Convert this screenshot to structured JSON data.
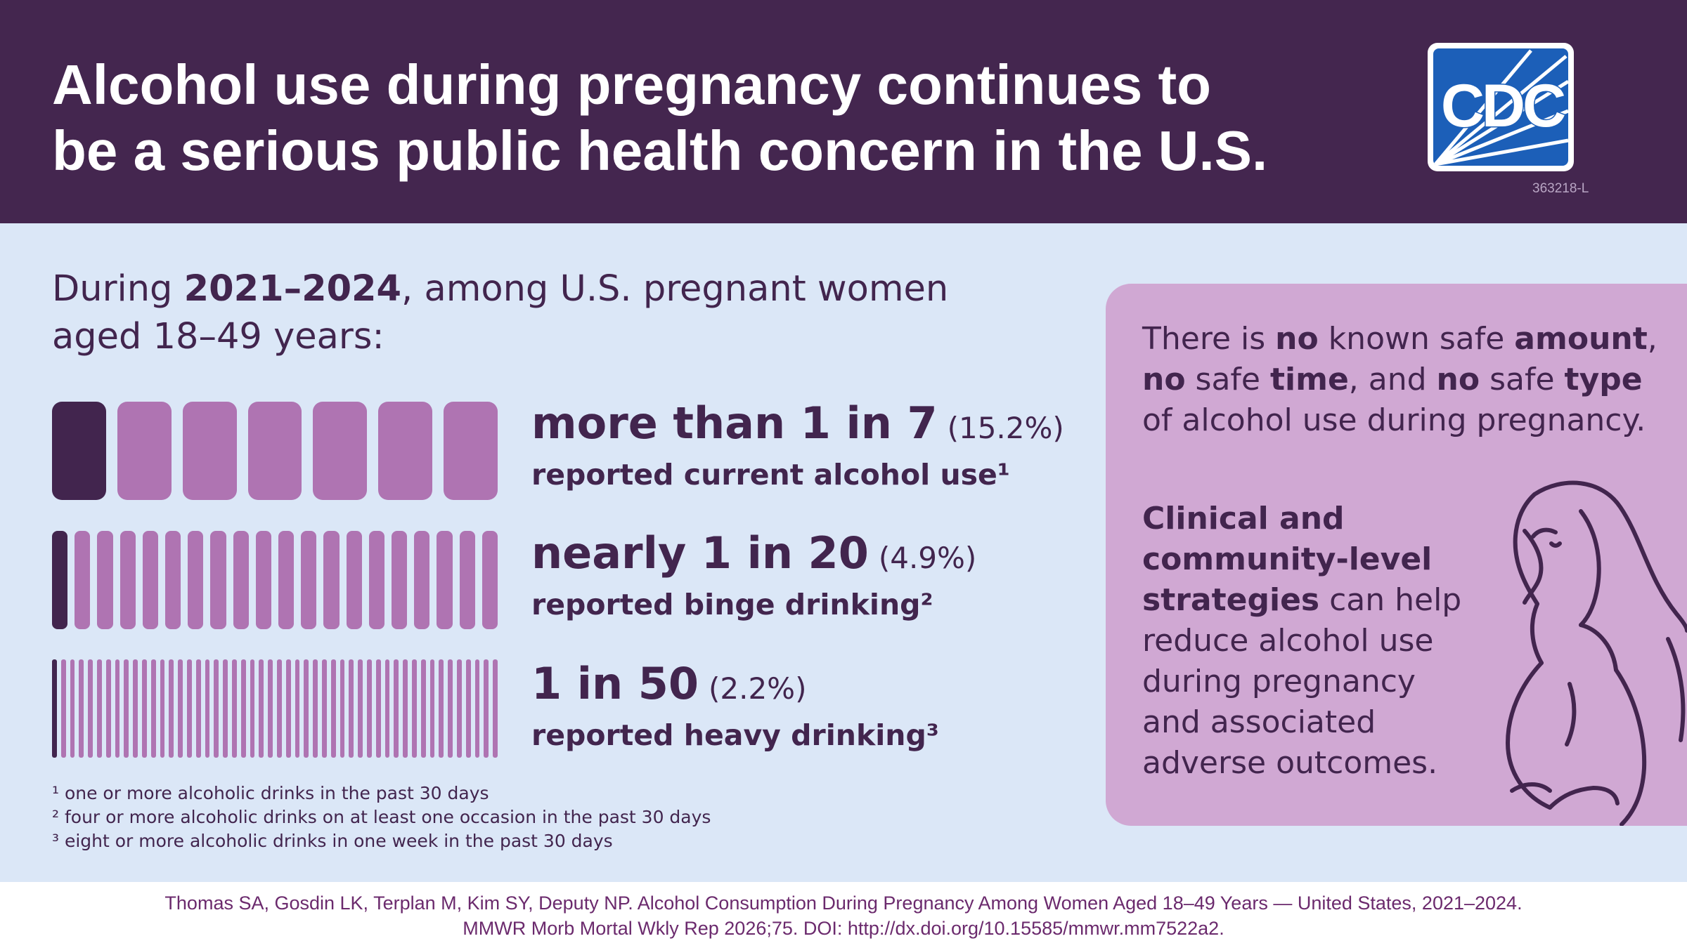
{
  "title": "Alcohol use during pregnancy continues to be a serious public health concern in the U.S.",
  "logo": {
    "text": "CDC",
    "code": "363218-L"
  },
  "intro": {
    "lead": "During ",
    "years": "2021–2024",
    "rest": ", among U.S. pregnant women aged 18–49 years:"
  },
  "stats": [
    {
      "headline": "more than 1 in 7",
      "percent": "(15.2%)",
      "description": "reported current alcohol use¹",
      "filled": 1,
      "total": 7
    },
    {
      "headline": "nearly 1 in 20",
      "percent": "(4.9%)",
      "description": "reported binge drinking²",
      "filled": 1,
      "total": 20
    },
    {
      "headline": "1 in 50",
      "percent": "(2.2%)",
      "description": "reported heavy drinking³",
      "filled": 1,
      "total": 50
    }
  ],
  "footnotes": [
    "¹ one or more alcoholic drinks in the past 30 days",
    "² four or more alcoholic drinks on at least one occasion in the past 30 days",
    "³ eight or more alcoholic drinks in one week in the past 30 days"
  ],
  "panel": {
    "p1": [
      "There is ",
      "no",
      " known safe ",
      "amount",
      ", ",
      "no",
      " safe ",
      "time",
      ", and ",
      "no",
      " safe ",
      "type",
      " of alcohol use during pregnancy."
    ],
    "p2_bold": "Clinical and community-level strategies",
    "p2_rest": " can help reduce alcohol use during pregnancy and associated adverse outcomes."
  },
  "citation": [
    "Thomas SA, Gosdin LK, Terplan M, Kim SY, Deputy NP. Alcohol Consumption During Pregnancy Among Women Aged 18–49 Years — United States, 2021–2024.",
    "MMWR Morb Mortal Wkly Rep 2026;75. DOI: http://dx.doi.org/10.15585/mmwr.mm7522a2."
  ],
  "colors": {
    "header": "#44264f",
    "background": "#dbe7f7",
    "accent_dark": "#42254e",
    "accent_light": "#af74b2",
    "panel": "#d0a8d3",
    "citation_text": "#6b2a6d"
  }
}
